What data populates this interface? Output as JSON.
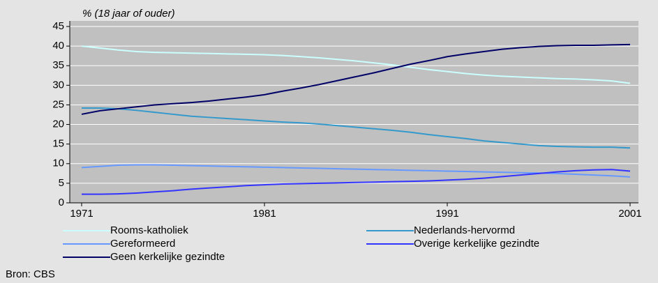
{
  "chart_data": {
    "type": "line",
    "title": "% (18 jaar of ouder)",
    "source": "Bron: CBS",
    "x": [
      1971,
      1972,
      1973,
      1974,
      1975,
      1976,
      1977,
      1978,
      1979,
      1980,
      1981,
      1982,
      1983,
      1984,
      1985,
      1986,
      1987,
      1988,
      1989,
      1990,
      1991,
      1992,
      1993,
      1994,
      1995,
      1996,
      1997,
      1998,
      1999,
      2000,
      2001
    ],
    "xlim": [
      1971,
      2001
    ],
    "xticks": [
      1971,
      1981,
      1991,
      2001
    ],
    "ylim": [
      0,
      45
    ],
    "yticks": [
      0,
      5,
      10,
      15,
      20,
      25,
      30,
      35,
      40,
      45
    ],
    "grid": true,
    "series": [
      {
        "name": "Rooms-katholiek",
        "color": "#ccffff",
        "values": [
          40,
          39.5,
          39,
          38.6,
          38.4,
          38.3,
          38.2,
          38.1,
          38,
          37.9,
          37.8,
          37.6,
          37.3,
          37,
          36.6,
          36.2,
          35.7,
          35.2,
          34.6,
          34,
          33.5,
          33,
          32.6,
          32.3,
          32.1,
          31.9,
          31.7,
          31.6,
          31.4,
          31.1,
          30.5
        ]
      },
      {
        "name": "Nederlands-hervormd",
        "color": "#3399cc",
        "values": [
          24.2,
          24.2,
          24.0,
          23.6,
          23.1,
          22.6,
          22.1,
          21.8,
          21.5,
          21.2,
          20.9,
          20.6,
          20.4,
          20.1,
          19.7,
          19.3,
          18.9,
          18.5,
          18.0,
          17.4,
          16.9,
          16.4,
          15.8,
          15.4,
          15.0,
          14.6,
          14.4,
          14.3,
          14.2,
          14.2,
          14.0
        ]
      },
      {
        "name": "Gereformeerd",
        "color": "#6699ff",
        "values": [
          9,
          9.3,
          9.6,
          9.7,
          9.7,
          9.6,
          9.5,
          9.4,
          9.3,
          9.2,
          9.1,
          9.0,
          8.9,
          8.8,
          8.7,
          8.6,
          8.5,
          8.4,
          8.3,
          8.2,
          8.1,
          8.0,
          7.9,
          7.8,
          7.7,
          7.6,
          7.5,
          7.3,
          7.1,
          6.9,
          6.6
        ]
      },
      {
        "name": "Overige kerkelijke gezindte",
        "color": "#3333ff",
        "values": [
          2.2,
          2.2,
          2.3,
          2.5,
          2.8,
          3.1,
          3.5,
          3.8,
          4.1,
          4.4,
          4.6,
          4.8,
          4.9,
          5.0,
          5.1,
          5.2,
          5.3,
          5.4,
          5.5,
          5.6,
          5.8,
          6.0,
          6.3,
          6.7,
          7.1,
          7.5,
          7.9,
          8.2,
          8.4,
          8.5,
          8.1
        ]
      },
      {
        "name": "Geen kerkelijke gezindte",
        "color": "#000066",
        "values": [
          22.6,
          23.5,
          24,
          24.5,
          25,
          25.3,
          25.6,
          26,
          26.5,
          27,
          27.6,
          28.5,
          29.3,
          30.2,
          31.2,
          32.2,
          33.2,
          34.3,
          35.4,
          36.3,
          37.3,
          38.0,
          38.6,
          39.2,
          39.6,
          39.9,
          40.1,
          40.2,
          40.2,
          40.3,
          40.4
        ]
      }
    ]
  }
}
